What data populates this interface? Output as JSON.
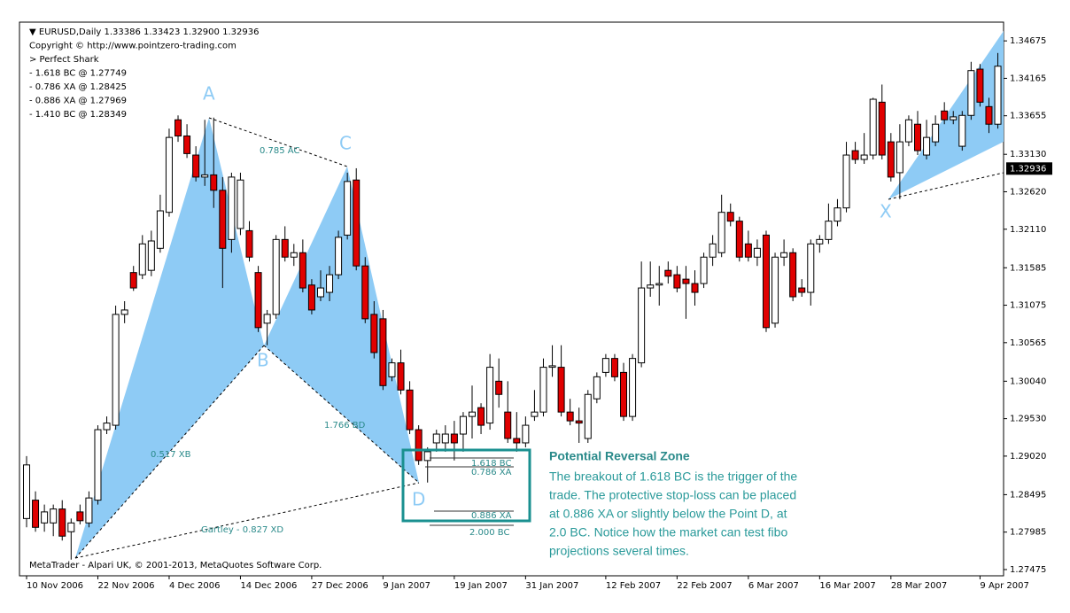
{
  "chart_data": {
    "type": "candlestick",
    "header": [
      "▼ EURUSD,Daily  1.33386 1.33423 1.32900 1.32936",
      "Copyright © http://www.pointzero-trading.com",
      "> Perfect Shark",
      "- 1.618 BC @ 1.27749",
      "- 0.786 XA @ 1.28425",
      "- 0.886 XA @ 1.27969",
      "- 1.410 BC @ 1.28349"
    ],
    "footer": "MetaTrader - Alpari UK, © 2001-2013, MetaQuotes Software Corp.",
    "categories": [
      "10 Nov 2006",
      null,
      null,
      null,
      null,
      null,
      null,
      null,
      "22 Nov 2006",
      null,
      null,
      null,
      null,
      null,
      null,
      null,
      "4 Dec 2006",
      null,
      null,
      null,
      null,
      null,
      null,
      null,
      "14 Dec 2006",
      null,
      null,
      null,
      null,
      null,
      null,
      null,
      "27 Dec 2006",
      null,
      null,
      null,
      null,
      null,
      null,
      null,
      "9 Jan 2007",
      null,
      null,
      null,
      null,
      null,
      null,
      null,
      "19 Jan 2007",
      null,
      null,
      null,
      null,
      null,
      null,
      null,
      "31 Jan 2007",
      null,
      null,
      null,
      null,
      null,
      null,
      null,
      null,
      "12 Feb 2007",
      null,
      null,
      null,
      null,
      null,
      null,
      null,
      "22 Feb 2007",
      null,
      null,
      null,
      null,
      null,
      null,
      null,
      "6 Mar 2007",
      null,
      null,
      null,
      null,
      null,
      null,
      null,
      "16 Mar 2007",
      null,
      null,
      null,
      null,
      null,
      null,
      null,
      "28 Mar 2007",
      null,
      null,
      null,
      null,
      null,
      null,
      null,
      null,
      null,
      "9 Apr 2007",
      null,
      null
    ],
    "open": [
      1.2817,
      1.2842,
      1.2811,
      1.2811,
      1.283,
      1.2799,
      1.2826,
      1.2811,
      1.2842,
      1.2938,
      1.2944,
      1.3095,
      1.3152,
      1.3149,
      1.3155,
      1.3185,
      1.3234,
      1.336,
      1.3338,
      1.3312,
      1.3282,
      1.3285,
      1.3264,
      1.3197,
      1.3212,
      1.3209,
      1.3152,
      1.3083,
      1.3095,
      1.3197,
      1.3173,
      1.3179,
      1.3135,
      1.3119,
      1.3125,
      1.3149,
      1.3203,
      1.3278,
      1.3161,
      1.3095,
      1.3089,
      1.301,
      1.3029,
      1.2992,
      1.2938,
      1.2896,
      1.292,
      1.292,
      1.2932,
      1.2932,
      1.2956,
      1.2968,
      1.2947,
      1.3004,
      1.2962,
      1.2926,
      1.292,
      1.2956,
      1.2962,
      1.3023,
      1.3023,
      1.2962,
      1.295,
      1.2926,
      1.298,
      1.3016,
      1.3035,
      1.3016,
      1.2956,
      1.3029,
      1.3131,
      1.3135,
      1.3155,
      1.3149,
      1.3143,
      1.3137,
      1.3137,
      1.3173,
      1.3179,
      1.3234,
      1.3222,
      1.3191,
      1.3173,
      1.3203,
      1.3083,
      1.3173,
      1.3179,
      1.3131,
      1.3125,
      1.3191,
      1.3197,
      1.3222,
      1.324,
      1.3318,
      1.3306,
      1.3312,
      1.3384,
      1.333,
      1.3288,
      1.333,
      1.3354,
      1.3312,
      1.333,
      1.3372,
      1.336,
      1.3324,
      1.3366,
      1.3429,
      1.3378,
      1.3354
    ],
    "high": [
      1.2902,
      1.2854,
      1.2836,
      1.2836,
      1.2842,
      1.2817,
      1.2836,
      1.2854,
      1.2944,
      1.2956,
      1.3107,
      1.3113,
      1.3161,
      1.3203,
      1.3209,
      1.3258,
      1.3348,
      1.3366,
      1.3354,
      1.3324,
      1.336,
      1.3363,
      1.3282,
      1.3288,
      1.3288,
      1.3222,
      1.3161,
      1.3101,
      1.3203,
      1.3215,
      1.3191,
      1.3197,
      1.3143,
      1.3155,
      1.3161,
      1.3209,
      1.3288,
      1.3294,
      1.3173,
      1.3113,
      1.3101,
      1.3035,
      1.3047,
      1.3004,
      1.2944,
      1.2914,
      1.2938,
      1.2944,
      1.295,
      1.2962,
      1.2998,
      1.2974,
      1.3041,
      1.3035,
      1.3004,
      1.2962,
      1.2956,
      1.2992,
      1.3035,
      1.3053,
      1.3053,
      1.298,
      1.2968,
      1.2992,
      1.3016,
      1.3041,
      1.3041,
      1.3029,
      1.3041,
      1.3167,
      1.3167,
      1.3161,
      1.3167,
      1.3161,
      1.3161,
      1.3155,
      1.3179,
      1.3203,
      1.3258,
      1.3246,
      1.3228,
      1.3209,
      1.3197,
      1.3209,
      1.3179,
      1.3197,
      1.3185,
      1.3143,
      1.3197,
      1.3203,
      1.3246,
      1.3252,
      1.333,
      1.333,
      1.3342,
      1.339,
      1.3408,
      1.3342,
      1.3354,
      1.3366,
      1.3372,
      1.336,
      1.3366,
      1.3384,
      1.3372,
      1.3372,
      1.3439,
      1.3436,
      1.339,
      1.3451
    ],
    "low": [
      1.2805,
      1.2799,
      1.2799,
      1.2793,
      1.2787,
      1.2761,
      1.2809,
      1.2805,
      1.2836,
      1.2932,
      1.2938,
      1.3083,
      1.3127,
      1.3143,
      1.3147,
      1.3179,
      1.3228,
      1.333,
      1.3308,
      1.3276,
      1.327,
      1.324,
      1.3131,
      1.3179,
      1.3203,
      1.3167,
      1.3071,
      1.3053,
      1.3089,
      1.3167,
      1.3161,
      1.3125,
      1.3095,
      1.3113,
      1.3113,
      1.3143,
      1.3197,
      1.3155,
      1.3083,
      1.3035,
      1.2992,
      1.3004,
      1.2986,
      1.2932,
      1.289,
      1.2866,
      1.2908,
      1.2908,
      1.2896,
      1.2908,
      1.2926,
      1.2932,
      1.2938,
      1.2968,
      1.292,
      1.2908,
      1.2914,
      1.295,
      1.2956,
      1.301,
      1.2956,
      1.2944,
      1.292,
      1.292,
      1.2974,
      1.301,
      1.3004,
      1.295,
      1.295,
      1.3023,
      1.3119,
      1.3107,
      1.3137,
      1.3125,
      1.3089,
      1.3107,
      1.3131,
      1.3161,
      1.3173,
      1.3215,
      1.3167,
      1.3167,
      1.3161,
      1.3071,
      1.3077,
      1.3161,
      1.3113,
      1.3119,
      1.3107,
      1.3179,
      1.3191,
      1.3215,
      1.3234,
      1.33,
      1.33,
      1.3306,
      1.3306,
      1.3276,
      1.3252,
      1.3324,
      1.3312,
      1.3306,
      1.3324,
      1.3354,
      1.3354,
      1.3318,
      1.336,
      1.3378,
      1.3342,
      1.3348
    ],
    "close": [
      1.289,
      1.2805,
      1.2826,
      1.283,
      1.2793,
      1.2811,
      1.2814,
      1.2845,
      1.2938,
      1.2947,
      1.3095,
      1.3101,
      1.3131,
      1.3191,
      1.3195,
      1.3236,
      1.3336,
      1.3338,
      1.3314,
      1.3282,
      1.3285,
      1.3264,
      1.3185,
      1.3282,
      1.3278,
      1.3173,
      1.3077,
      1.3095,
      1.3197,
      1.3173,
      1.3179,
      1.3131,
      1.3101,
      1.3131,
      1.3149,
      1.32,
      1.3276,
      1.3161,
      1.3089,
      1.3043,
      1.2998,
      1.3029,
      1.2992,
      1.2938,
      1.2896,
      1.2908,
      1.2932,
      1.2932,
      1.292,
      1.2956,
      1.2962,
      1.2944,
      1.3023,
      1.2986,
      1.2926,
      1.292,
      1.2944,
      1.2962,
      1.3023,
      1.3025,
      1.2962,
      1.295,
      1.2947,
      1.2986,
      1.301,
      1.3035,
      1.301,
      1.2956,
      1.3035,
      1.3131,
      1.3135,
      1.3137,
      1.3147,
      1.3131,
      1.3137,
      1.3125,
      1.3173,
      1.3191,
      1.3234,
      1.3222,
      1.3173,
      1.3173,
      1.3185,
      1.3077,
      1.3173,
      1.3179,
      1.3119,
      1.3125,
      1.3191,
      1.3197,
      1.3222,
      1.324,
      1.3312,
      1.3306,
      1.3312,
      1.3388,
      1.3312,
      1.3282,
      1.333,
      1.336,
      1.3318,
      1.3336,
      1.3354,
      1.336,
      1.3364,
      1.3366,
      1.3427,
      1.3384,
      1.3354,
      1.3433
    ],
    "up_color": "#ffffff",
    "down_color": "#e00000",
    "ylim": [
      1.2739,
      1.3493
    ],
    "yticks": [
      1.34675,
      1.34165,
      1.33655,
      {
        "value": 1.3313,
        "label": "1.33130"
      },
      {
        "value": 1.3262,
        "label": "1.32620"
      },
      {
        "value": 1.3211,
        "label": "1.32110"
      },
      1.31585,
      1.31075,
      1.30565,
      {
        "value": 1.3004,
        "label": "1.30040"
      },
      {
        "value": 1.2953,
        "label": "1.29530"
      },
      {
        "value": 1.2902,
        "label": "1.29020"
      },
      1.28495,
      1.27985,
      1.27475
    ],
    "last_price": {
      "value": 1.32936,
      "label": "1.32936"
    },
    "points": [
      "A",
      "B",
      "C",
      "D",
      "X"
    ],
    "ratios": [
      "0.785 AC",
      "1.766 BD",
      "0.517 XB",
      "Gartley - 0.827 XD",
      "1.618 BC",
      "0.786 XA",
      "0.886 XA",
      "2.000 BC"
    ],
    "box": {
      "title": "Potential Reversal Zone",
      "lines": [
        "The breakout of 1.618 BC is the trigger of the",
        "trade. The protective stop-loss can be placed",
        "at 0.886 XA or slightly below the Point D, at",
        "2.0 BC. Notice how the market can test fibo",
        "projections several times."
      ]
    }
  }
}
